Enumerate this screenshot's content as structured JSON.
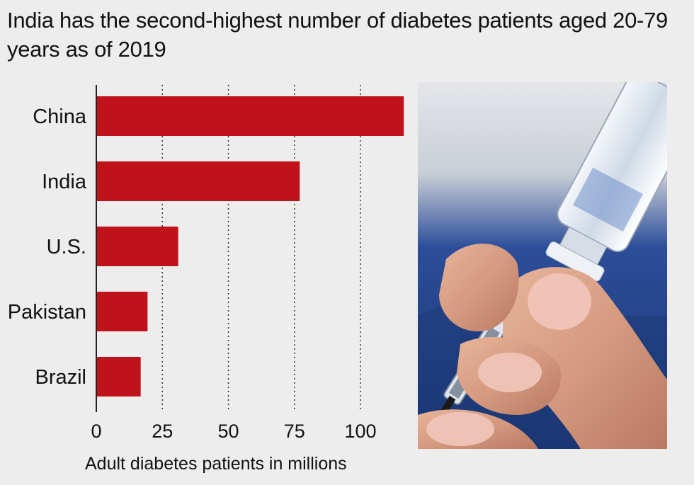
{
  "chart_data": {
    "type": "bar",
    "orientation": "horizontal",
    "title": "India has the second-highest number of diabetes patients aged 20-79 years as of 2019",
    "categories": [
      "China",
      "India",
      "U.S.",
      "Pakistan",
      "Brazil"
    ],
    "values": [
      116.4,
      77,
      31,
      19.4,
      16.8
    ],
    "xlabel": "Adult diabetes patients in millions",
    "ylabel": "",
    "xlim": [
      0,
      116
    ],
    "xticks": [
      0,
      25,
      50,
      75,
      100
    ],
    "grid": "vertical dotted",
    "bar_color": "#c0121a"
  },
  "photo": {
    "subject": "syringe-vial-icon"
  }
}
